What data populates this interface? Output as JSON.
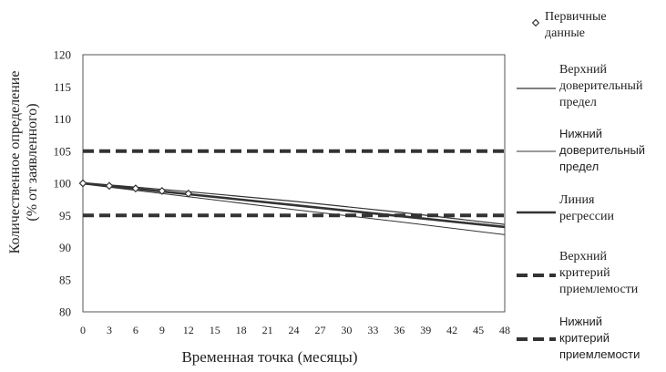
{
  "chart_data": {
    "type": "line",
    "xlabel": "Временная точка (месяцы)",
    "ylabel_lines": [
      "Количественное определение",
      "(% от заявленного)"
    ],
    "xlim": [
      0,
      48
    ],
    "ylim": [
      80,
      120
    ],
    "x_ticks": [
      0,
      3,
      6,
      9,
      12,
      15,
      18,
      21,
      24,
      27,
      30,
      33,
      36,
      39,
      42,
      45,
      48
    ],
    "y_ticks": [
      80,
      85,
      90,
      95,
      100,
      105,
      110,
      115,
      120
    ],
    "grid": false,
    "legend_position": "right",
    "series": [
      {
        "name_lines": [
          "Первичные",
          "данные"
        ],
        "kind": "points",
        "marker": "diamond",
        "color": "#333333",
        "x": [
          0,
          3,
          6,
          9,
          12
        ],
        "y": [
          100.0,
          99.6,
          99.2,
          98.8,
          98.4
        ]
      },
      {
        "name_lines": [
          "Верхний",
          "доверительный",
          "предел"
        ],
        "kind": "line",
        "color": "#333333",
        "width": 1.2,
        "x": [
          0,
          12,
          24,
          36,
          48
        ],
        "y": [
          100.1,
          98.7,
          97.2,
          95.5,
          93.6
        ]
      },
      {
        "name_lines": [
          "Нижний",
          "доверительный",
          "предел"
        ],
        "kind": "line",
        "color": "#333333",
        "width": 1.0,
        "x": [
          0,
          12,
          24,
          36,
          48
        ],
        "y": [
          99.9,
          97.9,
          95.9,
          94.0,
          92.0
        ]
      },
      {
        "name_lines": [
          "Линия",
          "регрессии"
        ],
        "kind": "line",
        "color": "#333333",
        "width": 2.6,
        "x": [
          0,
          12,
          24,
          36,
          48
        ],
        "y": [
          100.0,
          98.3,
          96.6,
          94.9,
          93.2
        ]
      },
      {
        "name_lines": [
          "Верхний",
          "критерий",
          "приемлемости"
        ],
        "kind": "dashed",
        "color": "#333333",
        "width": 4,
        "x": [
          0,
          48
        ],
        "y": [
          105,
          105
        ]
      },
      {
        "name_lines": [
          "Нижний",
          "критерий",
          "приемлемости"
        ],
        "kind": "dashed",
        "color": "#333333",
        "width": 4,
        "x": [
          0,
          48
        ],
        "y": [
          95,
          95
        ]
      }
    ]
  }
}
